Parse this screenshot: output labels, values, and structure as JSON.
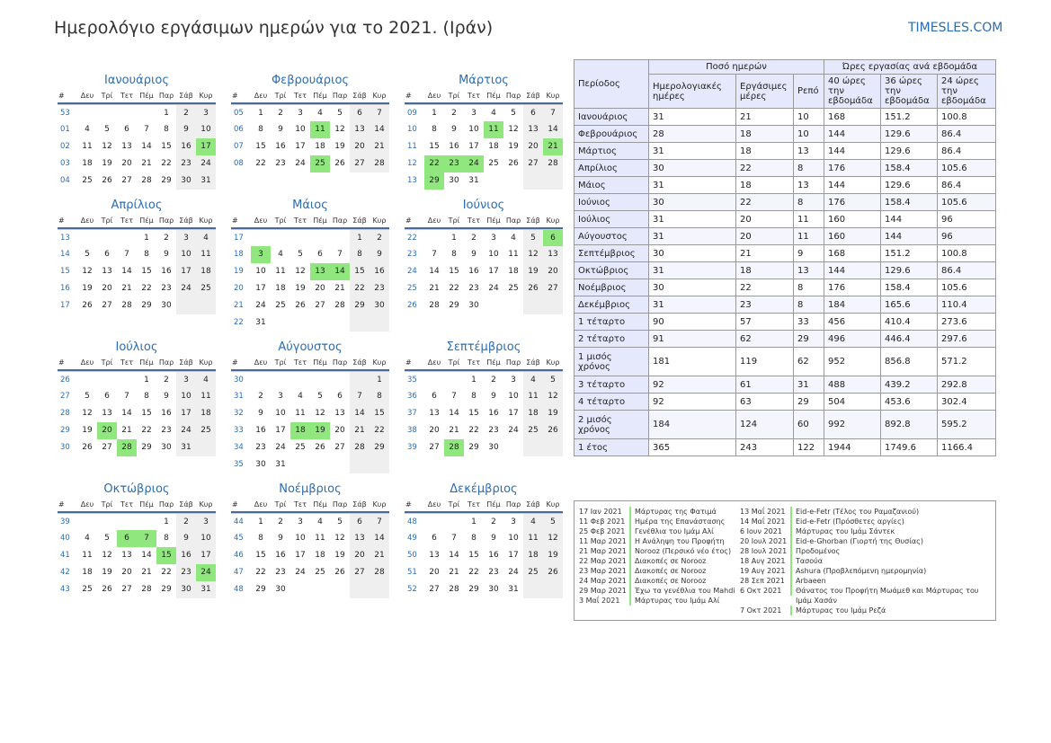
{
  "title": "Ημερολόγιο εργάσιμων ημερών για το 2021. (Ιράν)",
  "site": "TIMESLES.COM",
  "colors": {
    "accent": "#2a6db3",
    "holiday": "#8fe77e",
    "weekend": "#efefef",
    "table_header": "#e6e9fb"
  },
  "weekday_header": [
    "#",
    "Δευ",
    "Τρί",
    "Τετ",
    "Πέμ",
    "Παρ",
    "Σάβ",
    "Κυρ"
  ],
  "months": [
    {
      "name": "Ιανουάριος",
      "start": 4,
      "days": 31,
      "weeks": [
        "53",
        "01",
        "02",
        "03",
        "04"
      ],
      "holidays": [
        17
      ]
    },
    {
      "name": "Φεβρουάριος",
      "start": 0,
      "days": 28,
      "weeks": [
        "05",
        "06",
        "07",
        "08"
      ],
      "holidays": [
        11,
        25
      ]
    },
    {
      "name": "Μάρτιος",
      "start": 0,
      "days": 31,
      "weeks": [
        "09",
        "10",
        "11",
        "12",
        "13"
      ],
      "holidays": [
        11,
        21,
        22,
        23,
        24,
        29
      ]
    },
    {
      "name": "Απρίλιος",
      "start": 3,
      "days": 30,
      "weeks": [
        "13",
        "14",
        "15",
        "16",
        "17"
      ],
      "holidays": []
    },
    {
      "name": "Μάιος",
      "start": 5,
      "days": 31,
      "weeks": [
        "17",
        "18",
        "19",
        "20",
        "21",
        "22"
      ],
      "holidays": [
        3,
        13,
        14
      ]
    },
    {
      "name": "Ιούνιος",
      "start": 1,
      "days": 30,
      "weeks": [
        "22",
        "23",
        "24",
        "25",
        "26"
      ],
      "holidays": [
        6
      ]
    },
    {
      "name": "Ιούλιος",
      "start": 3,
      "days": 31,
      "weeks": [
        "26",
        "27",
        "28",
        "29",
        "30"
      ],
      "holidays": [
        20,
        28
      ]
    },
    {
      "name": "Αύγουστος",
      "start": 6,
      "days": 31,
      "weeks": [
        "30",
        "31",
        "32",
        "33",
        "34",
        "35"
      ],
      "holidays": [
        18,
        19
      ]
    },
    {
      "name": "Σεπτέμβριος",
      "start": 2,
      "days": 30,
      "weeks": [
        "35",
        "36",
        "37",
        "38",
        "39"
      ],
      "holidays": [
        28
      ]
    },
    {
      "name": "Οκτώβριος",
      "start": 4,
      "days": 31,
      "weeks": [
        "39",
        "40",
        "41",
        "42",
        "43"
      ],
      "holidays": [
        6,
        7,
        15,
        24
      ]
    },
    {
      "name": "Νοέμβριος",
      "start": 0,
      "days": 30,
      "weeks": [
        "44",
        "45",
        "46",
        "47",
        "48"
      ],
      "holidays": []
    },
    {
      "name": "Δεκέμβριος",
      "start": 2,
      "days": 31,
      "weeks": [
        "48",
        "49",
        "50",
        "51",
        "52"
      ],
      "holidays": []
    }
  ],
  "stats": {
    "h_period": "Περίοδος",
    "h_days": "Ποσό ημερών",
    "h_hours": "Ώρες εργασίας ανά εβδομάδα",
    "h_cal": "Ημερολογιακές ημέρες",
    "h_work": "Εργάσιμες μέρες",
    "h_rest": "Ρεπό",
    "h_40": "40 ώρες την εβδομάδα",
    "h_36": "36 ώρες την εβδομάδα",
    "h_24": "24 ώρες την εβδομάδα",
    "rows": [
      [
        "Ιανουάριος",
        "31",
        "21",
        "10",
        "168",
        "151.2",
        "100.8"
      ],
      [
        "Φεβρουάριος",
        "28",
        "18",
        "10",
        "144",
        "129.6",
        "86.4"
      ],
      [
        "Μάρτιος",
        "31",
        "18",
        "13",
        "144",
        "129.6",
        "86.4"
      ],
      [
        "Απρίλιος",
        "30",
        "22",
        "8",
        "176",
        "158.4",
        "105.6"
      ],
      [
        "Μάιος",
        "31",
        "18",
        "13",
        "144",
        "129.6",
        "86.4"
      ],
      [
        "Ιούνιος",
        "30",
        "22",
        "8",
        "176",
        "158.4",
        "105.6"
      ],
      [
        "Ιούλιος",
        "31",
        "20",
        "11",
        "160",
        "144",
        "96"
      ],
      [
        "Αύγουστος",
        "31",
        "20",
        "11",
        "160",
        "144",
        "96"
      ],
      [
        "Σεπτέμβριος",
        "30",
        "21",
        "9",
        "168",
        "151.2",
        "100.8"
      ],
      [
        "Οκτώβριος",
        "31",
        "18",
        "13",
        "144",
        "129.6",
        "86.4"
      ],
      [
        "Νοέμβριος",
        "30",
        "22",
        "8",
        "176",
        "158.4",
        "105.6"
      ],
      [
        "Δεκέμβριος",
        "31",
        "23",
        "8",
        "184",
        "165.6",
        "110.4"
      ],
      [
        "1 τέταρτο",
        "90",
        "57",
        "33",
        "456",
        "410.4",
        "273.6"
      ],
      [
        "2 τέταρτο",
        "91",
        "62",
        "29",
        "496",
        "446.4",
        "297.6"
      ],
      [
        "1 μισός χρόνος",
        "181",
        "119",
        "62",
        "952",
        "856.8",
        "571.2"
      ],
      [
        "3 τέταρτο",
        "92",
        "61",
        "31",
        "488",
        "439.2",
        "292.8"
      ],
      [
        "4 τέταρτο",
        "92",
        "63",
        "29",
        "504",
        "453.6",
        "302.4"
      ],
      [
        "2 μισός χρόνος",
        "184",
        "124",
        "60",
        "992",
        "892.8",
        "595.2"
      ],
      [
        "1 έτος",
        "365",
        "243",
        "122",
        "1944",
        "1749.6",
        "1166.4"
      ]
    ]
  },
  "holidays_list": {
    "col1": [
      [
        "17 Ιαν 2021",
        "Μάρτυρας της Φατιμά"
      ],
      [
        "11 Φεβ 2021",
        "Ημέρα της Επανάστασης"
      ],
      [
        "25 Φεβ 2021",
        "Γενέθλια του Ιμάμ Αλί"
      ],
      [
        "11 Μαρ 2021",
        "Η Ανάληψη του Προφήτη"
      ],
      [
        "21 Μαρ 2021",
        "Norooz (Περσικό νέο έτος)"
      ],
      [
        "22 Μαρ 2021",
        "Διακοπές σε Norooz"
      ],
      [
        "23 Μαρ 2021",
        "Διακοπές σε Norooz"
      ],
      [
        "24 Μαρ 2021",
        "Διακοπές σε Norooz"
      ],
      [
        "29 Μαρ 2021",
        "Έχω τα γενέθλια του Mahdi"
      ],
      [
        "3 Μαΐ 2021",
        "Μάρτυρας του Ιμάμ Αλί"
      ]
    ],
    "col2": [
      [
        "13 Μαΐ 2021",
        "Eid-e-Fetr (Τέλος του Ραμαζανιού)"
      ],
      [
        "14 Μαΐ 2021",
        "Eid-e-Fetr (Πρόσθετες αργίες)"
      ],
      [
        "6 Ιουν 2021",
        "Μάρτυρας του Ιμάμ Σάντεκ"
      ],
      [
        "20 Ιουλ 2021",
        "Eid-e-Ghorban (Γιορτή της Θυσίας)"
      ],
      [
        "28 Ιουλ 2021",
        "Προδομένος"
      ],
      [
        "18 Αυγ 2021",
        "Tασούα"
      ],
      [
        "19 Αυγ 2021",
        "Ashura (Προβλεπόμενη ημερομηνία)"
      ],
      [
        "28 Σεπ 2021",
        "Arbaeen"
      ],
      [
        "6 Οκτ 2021",
        "Θάνατος του Προφήτη Μωάμεθ και Μάρτυρας του"
      ],
      [
        "",
        "Ιμάμ Χασάν"
      ],
      [
        "7 Οκτ 2021",
        "Μάρτυρας του Ιμάμ Ρεζά"
      ]
    ]
  }
}
